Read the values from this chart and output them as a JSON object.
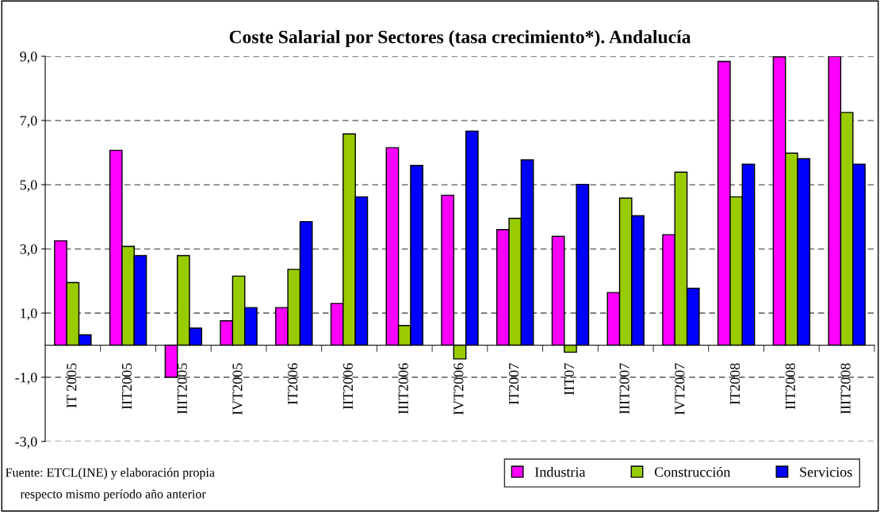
{
  "chart_data": {
    "type": "bar",
    "title": "Coste Salarial por Sectores (tasa crecimiento*). Andalucía",
    "categories": [
      "IT 2005",
      "IIT2005",
      "IIIT2005",
      "IVT2005",
      "IT2006",
      "IIT2006",
      "IIIT2006",
      "IVT2006",
      "IT2007",
      "IIT07",
      "IIIT2007",
      "IVT2007",
      "IT2008",
      "IIT2008",
      "IIIT2008"
    ],
    "series": [
      {
        "name": "Industria",
        "color": "#ff00ff",
        "values": [
          3.25,
          6.07,
          -1.0,
          0.76,
          1.17,
          1.3,
          6.15,
          4.67,
          3.6,
          3.39,
          1.64,
          3.44,
          8.84,
          8.98,
          9.0
        ]
      },
      {
        "name": "Construcción",
        "color": "#99cc00",
        "values": [
          1.95,
          3.08,
          2.79,
          2.15,
          2.36,
          6.58,
          0.61,
          -0.43,
          3.95,
          -0.22,
          4.58,
          5.39,
          4.62,
          5.98,
          7.25
        ]
      },
      {
        "name": "Servicios",
        "color": "#0000ff",
        "values": [
          0.32,
          2.79,
          0.53,
          1.17,
          3.85,
          4.62,
          5.6,
          6.67,
          5.77,
          5.01,
          4.03,
          1.77,
          5.64,
          5.81,
          5.64
        ]
      }
    ],
    "ylim": [
      -3,
      9
    ],
    "yticks": [
      {
        "value": -3,
        "label": "-3,0"
      },
      {
        "value": -1,
        "label": "-1,0"
      },
      {
        "value": 1,
        "label": "1,0"
      },
      {
        "value": 3,
        "label": "3,0"
      },
      {
        "value": 5,
        "label": "5,0"
      },
      {
        "value": 7,
        "label": "7,0"
      },
      {
        "value": 9,
        "label": "9,0"
      }
    ],
    "grid": "y",
    "line_style": "dashed",
    "legend": "bottom right",
    "annotations": [
      "Fuente: ETCL(INE) y elaboración propia",
      "respecto mismo período año anterior"
    ]
  }
}
